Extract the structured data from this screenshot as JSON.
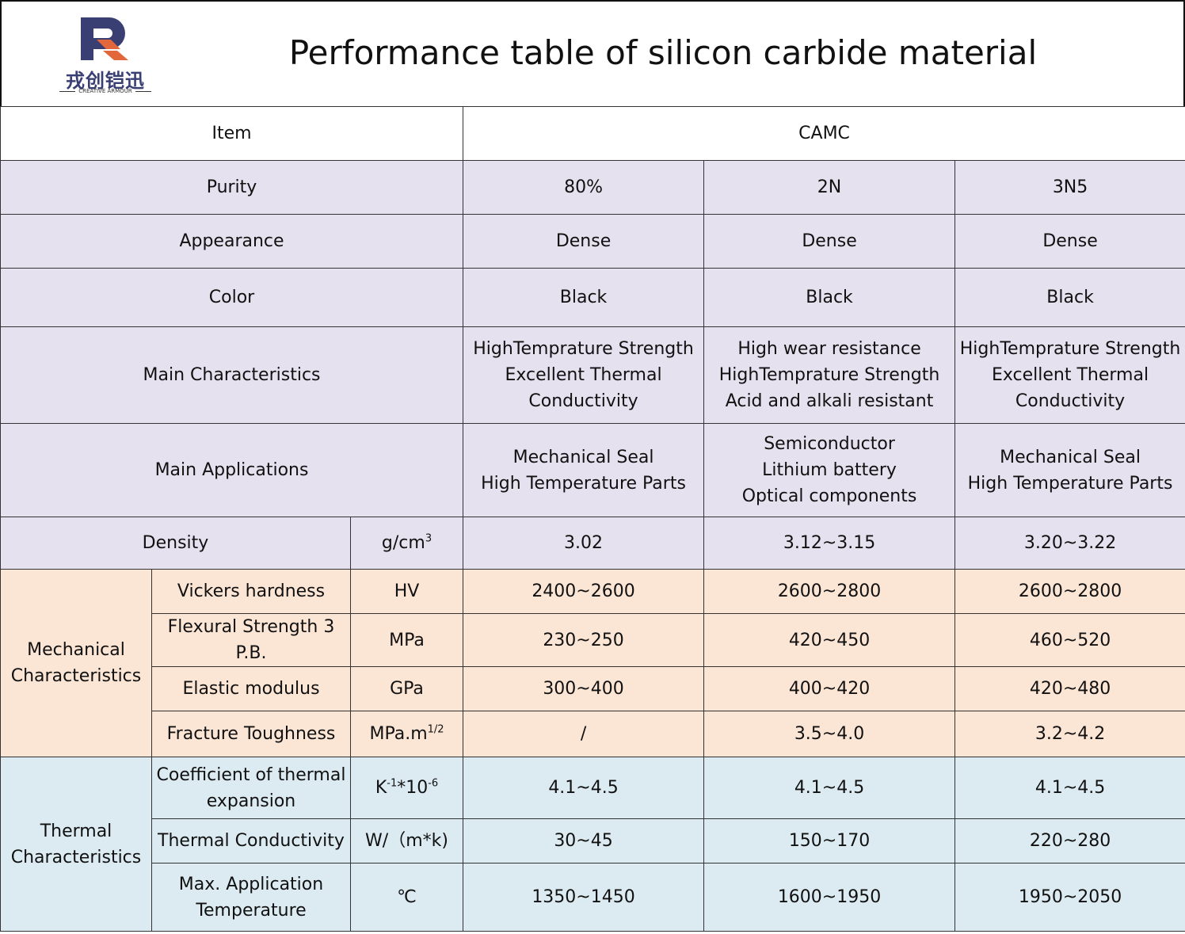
{
  "header": {
    "logo_cn": "戎创铠迅",
    "logo_en": "CREATIVE ARMOUR",
    "title": "Performance table of silicon carbide material"
  },
  "colors": {
    "lavender": "#e5e1ef",
    "peach": "#fbe5d5",
    "light_blue": "#dcebf2",
    "logo_navy": "#3a3f73",
    "logo_orange": "#e2673a"
  },
  "table": {
    "item_header": "Item",
    "brand_header": "CAMC",
    "general_rows": [
      {
        "label": "Purity",
        "values": [
          "80%",
          "2N",
          "3N5"
        ]
      },
      {
        "label": "Appearance",
        "values": [
          "Dense",
          "Dense",
          "Dense"
        ]
      },
      {
        "label": "Color",
        "values": [
          "Black",
          "Black",
          "Black"
        ]
      },
      {
        "label": "Main Characteristics",
        "values": [
          [
            "HighTemprature Strength",
            "Excellent Thermal",
            "Conductivity"
          ],
          [
            "High wear resistance",
            "HighTemprature Strength",
            "Acid and alkali resistant"
          ],
          [
            "HighTemprature Strength",
            "Excellent Thermal",
            "Conductivity"
          ]
        ]
      },
      {
        "label": "Main Applications",
        "values": [
          [
            "Mechanical Seal",
            "High Temperature Parts"
          ],
          [
            "Semiconductor",
            "Lithium battery",
            "Optical components"
          ],
          [
            "Mechanical Seal",
            "High Temperature Parts"
          ]
        ]
      }
    ],
    "density": {
      "label": "Density",
      "unit_base": "g/cm",
      "unit_sup": "3",
      "values": [
        "3.02",
        "3.12~3.15",
        "3.20~3.22"
      ]
    },
    "mechanical": {
      "group_label": [
        "Mechanical",
        "Characteristics"
      ],
      "rows": [
        {
          "label": [
            "Vickers hardness"
          ],
          "unit_base": "HV",
          "unit_sup": "",
          "values": [
            "2400~2600",
            "2600~2800",
            "2600~2800"
          ]
        },
        {
          "label": [
            "Flexural Strength 3",
            "P.B."
          ],
          "unit_base": "MPa",
          "unit_sup": "",
          "values": [
            "230~250",
            "420~450",
            "460~520"
          ]
        },
        {
          "label": [
            "Elastic modulus"
          ],
          "unit_base": "GPa",
          "unit_sup": "",
          "values": [
            "300~400",
            "400~420",
            "420~480"
          ]
        },
        {
          "label": [
            "Fracture Toughness"
          ],
          "unit_base": "MPa.m",
          "unit_sup": "1/2",
          "values": [
            "/",
            "3.5~4.0",
            "3.2~4.2"
          ]
        }
      ]
    },
    "thermal": {
      "group_label": [
        "Thermal",
        "Characteristics"
      ],
      "rows": [
        {
          "label": [
            "Coefficient of thermal",
            "expansion"
          ],
          "unit_parts": [
            "K",
            "-1",
            "*10",
            "-6"
          ],
          "values": [
            "4.1~4.5",
            "4.1~4.5",
            "4.1~4.5"
          ]
        },
        {
          "label": [
            "Thermal Conductivity"
          ],
          "unit_text": "W/（m*k)",
          "values": [
            "30~45",
            "150~170",
            "220~280"
          ]
        },
        {
          "label": [
            "Max. Application",
            "Temperature"
          ],
          "unit_text": "℃",
          "values": [
            "1350~1450",
            "1600~1950",
            "1950~2050"
          ]
        }
      ]
    }
  }
}
